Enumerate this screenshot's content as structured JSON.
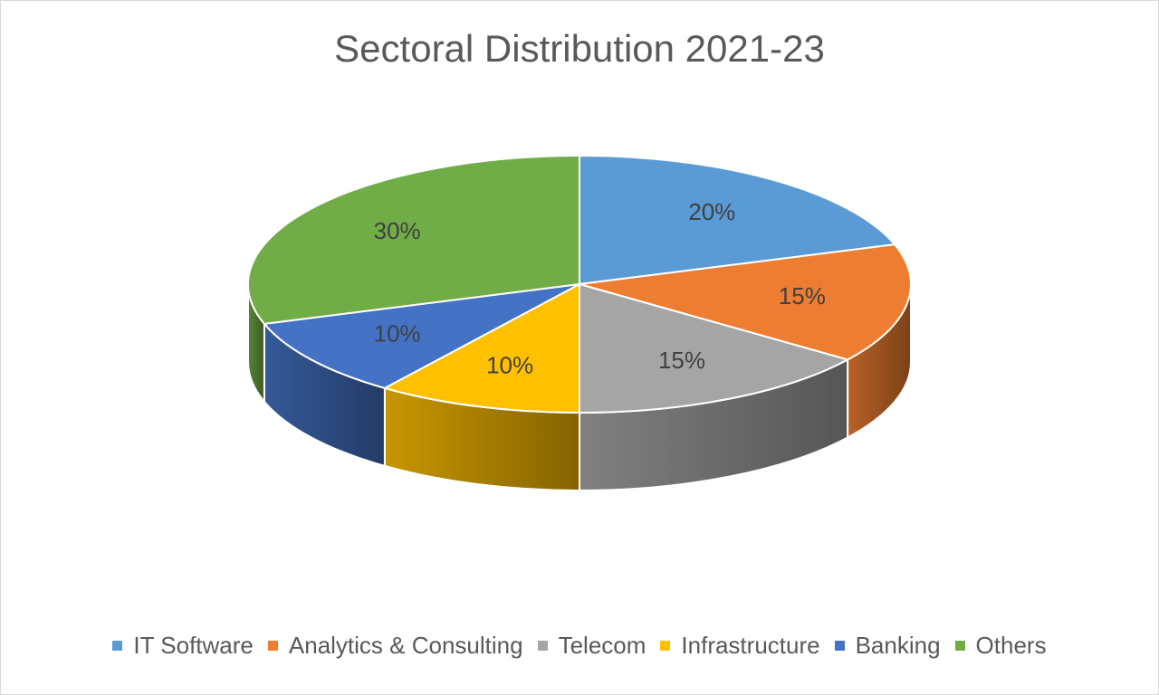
{
  "chart_data": {
    "type": "pie",
    "title": "Sectoral Distribution 2021-23",
    "legend_position": "bottom",
    "three_d": true,
    "slices": [
      {
        "label": "IT Software",
        "value": 20,
        "value_label": "20%",
        "color": "#5b9bd5"
      },
      {
        "label": "Analytics & Consulting",
        "value": 15,
        "value_label": "15%",
        "color": "#ed7d31"
      },
      {
        "label": "Telecom",
        "value": 15,
        "value_label": "15%",
        "color": "#a5a5a5"
      },
      {
        "label": "Infrastructure",
        "value": 10,
        "value_label": "10%",
        "color": "#ffc000"
      },
      {
        "label": "Banking",
        "value": 10,
        "value_label": "10%",
        "color": "#4472c4"
      },
      {
        "label": "Others",
        "value": 30,
        "value_label": "30%",
        "color": "#70ad47"
      }
    ]
  }
}
